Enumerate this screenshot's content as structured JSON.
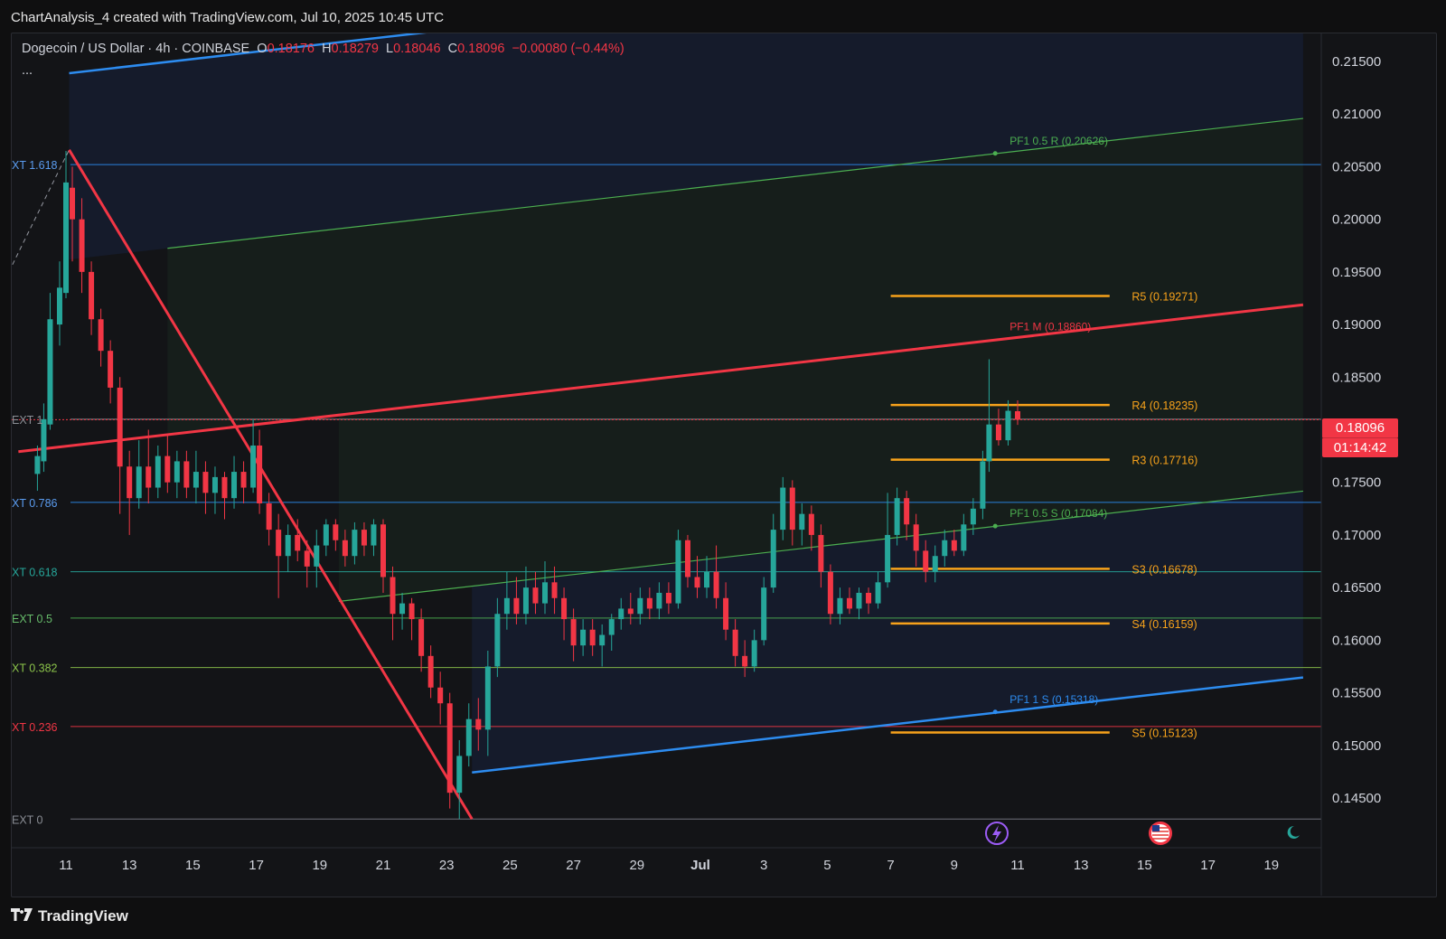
{
  "header": {
    "caption": "ChartAnalysis_4 created with TradingView.com, Jul 10, 2025 10:45 UTC"
  },
  "legend": {
    "symbol": "Dogecoin / US Dollar · 4h · COINBASE",
    "o_label": "O",
    "o_value": "0.18176",
    "h_label": "H",
    "h_value": "0.18279",
    "l_label": "L",
    "l_value": "0.18046",
    "c_label": "C",
    "c_value": "0.18096",
    "change": "−0.00080 (−0.44%)",
    "more": "..."
  },
  "last_price": {
    "value": "0.18096",
    "countdown": "01:14:42"
  },
  "footer": {
    "brand": "TradingView"
  },
  "colors": {
    "up": "#26a69a",
    "down": "#f23645",
    "channel_blue": "#2d8cf0",
    "median_red": "#f23645",
    "pivot_orange": "#f7a21b",
    "green_line": "#4caf50"
  },
  "chart_data": {
    "type": "candlestick",
    "symbol": "Dogecoin / US Dollar",
    "interval": "4h",
    "ylim": [
      0.1428,
      0.2178
    ],
    "y_ticks": [
      "0.21500",
      "0.21000",
      "0.20500",
      "0.20000",
      "0.19500",
      "0.19000",
      "0.18500",
      "0.18000",
      "0.17500",
      "0.17000",
      "0.16500",
      "0.16000",
      "0.15500",
      "0.15000",
      "0.14500"
    ],
    "x_ticks": [
      {
        "label": "11",
        "day": 0
      },
      {
        "label": "13",
        "day": 2
      },
      {
        "label": "15",
        "day": 4
      },
      {
        "label": "17",
        "day": 6
      },
      {
        "label": "19",
        "day": 8
      },
      {
        "label": "21",
        "day": 10
      },
      {
        "label": "23",
        "day": 12
      },
      {
        "label": "25",
        "day": 14
      },
      {
        "label": "27",
        "day": 16
      },
      {
        "label": "29",
        "day": 18
      },
      {
        "label": "Jul",
        "day": 20
      },
      {
        "label": "3",
        "day": 22
      },
      {
        "label": "5",
        "day": 24
      },
      {
        "label": "7",
        "day": 26
      },
      {
        "label": "9",
        "day": 28
      },
      {
        "label": "11",
        "day": 30
      },
      {
        "label": "13",
        "day": 32
      },
      {
        "label": "15",
        "day": 34
      },
      {
        "label": "17",
        "day": 36
      },
      {
        "label": "19",
        "day": 38
      }
    ],
    "fib_extension": [
      {
        "label": "XT 1.618",
        "price": 0.2052
      },
      {
        "label": "EXT 1",
        "price": 0.181
      },
      {
        "label": "XT 0.786",
        "price": 0.1731
      },
      {
        "label": "XT 0.618",
        "price": 0.1665
      },
      {
        "label": "EXT 0.5",
        "price": 0.1621
      },
      {
        "label": "XT 0.382",
        "price": 0.1574
      },
      {
        "label": "XT 0.236",
        "price": 0.1518
      },
      {
        "label": "EXT 0",
        "price": 0.143
      }
    ],
    "pivots": [
      {
        "label": "R5 (0.19271)",
        "price": 0.19271
      },
      {
        "label": "R4 (0.18235)",
        "price": 0.18235
      },
      {
        "label": "R3 (0.17716)",
        "price": 0.17716
      },
      {
        "label": "S3 (0.16678)",
        "price": 0.16678
      },
      {
        "label": "S4 (0.16159)",
        "price": 0.16159
      },
      {
        "label": "S5 (0.15123)",
        "price": 0.15123
      }
    ],
    "pitchfork_labels": [
      {
        "label": "PF1 0.5 R (0.20626)",
        "price": 0.20626
      },
      {
        "label": "PF1 M (0.18860)",
        "price": 0.1886
      },
      {
        "label": "PF1 0.5 S (0.17084)",
        "price": 0.17084
      },
      {
        "label": "PF1 1 S (0.15318)",
        "price": 0.15318
      }
    ],
    "candles": [
      {
        "d": -0.9,
        "o": 0.1758,
        "c": 0.1775,
        "h": 0.1785,
        "l": 0.1742
      },
      {
        "d": -0.7,
        "o": 0.177,
        "c": 0.181,
        "h": 0.1825,
        "l": 0.176
      },
      {
        "d": -0.5,
        "o": 0.1805,
        "c": 0.1905,
        "h": 0.193,
        "l": 0.18
      },
      {
        "d": -0.2,
        "o": 0.19,
        "c": 0.1935,
        "h": 0.196,
        "l": 0.188
      },
      {
        "d": 0.0,
        "o": 0.193,
        "c": 0.2035,
        "h": 0.2065,
        "l": 0.1925
      },
      {
        "d": 0.2,
        "o": 0.203,
        "c": 0.2,
        "h": 0.205,
        "l": 0.196
      },
      {
        "d": 0.5,
        "o": 0.2,
        "c": 0.195,
        "h": 0.202,
        "l": 0.193
      },
      {
        "d": 0.8,
        "o": 0.195,
        "c": 0.1905,
        "h": 0.196,
        "l": 0.189
      },
      {
        "d": 1.1,
        "o": 0.1905,
        "c": 0.1875,
        "h": 0.1915,
        "l": 0.186
      },
      {
        "d": 1.4,
        "o": 0.1875,
        "c": 0.184,
        "h": 0.1885,
        "l": 0.1825
      },
      {
        "d": 1.7,
        "o": 0.184,
        "c": 0.1765,
        "h": 0.185,
        "l": 0.172
      },
      {
        "d": 2.0,
        "o": 0.1765,
        "c": 0.1735,
        "h": 0.178,
        "l": 0.17
      },
      {
        "d": 2.3,
        "o": 0.1735,
        "c": 0.1765,
        "h": 0.179,
        "l": 0.1725
      },
      {
        "d": 2.6,
        "o": 0.1765,
        "c": 0.1745,
        "h": 0.18,
        "l": 0.173
      },
      {
        "d": 2.9,
        "o": 0.1745,
        "c": 0.1775,
        "h": 0.1785,
        "l": 0.1735
      },
      {
        "d": 3.2,
        "o": 0.1775,
        "c": 0.175,
        "h": 0.1795,
        "l": 0.174
      },
      {
        "d": 3.5,
        "o": 0.175,
        "c": 0.177,
        "h": 0.178,
        "l": 0.1735
      },
      {
        "d": 3.8,
        "o": 0.177,
        "c": 0.1745,
        "h": 0.178,
        "l": 0.1735
      },
      {
        "d": 4.1,
        "o": 0.1745,
        "c": 0.176,
        "h": 0.178,
        "l": 0.173
      },
      {
        "d": 4.4,
        "o": 0.176,
        "c": 0.174,
        "h": 0.177,
        "l": 0.172
      },
      {
        "d": 4.7,
        "o": 0.174,
        "c": 0.1755,
        "h": 0.1765,
        "l": 0.172
      },
      {
        "d": 5.0,
        "o": 0.1755,
        "c": 0.1735,
        "h": 0.176,
        "l": 0.1715
      },
      {
        "d": 5.3,
        "o": 0.1735,
        "c": 0.176,
        "h": 0.1775,
        "l": 0.1725
      },
      {
        "d": 5.6,
        "o": 0.176,
        "c": 0.1745,
        "h": 0.177,
        "l": 0.173
      },
      {
        "d": 5.9,
        "o": 0.1745,
        "c": 0.1785,
        "h": 0.181,
        "l": 0.174
      },
      {
        "d": 6.1,
        "o": 0.1785,
        "c": 0.173,
        "h": 0.18,
        "l": 0.172
      },
      {
        "d": 6.4,
        "o": 0.173,
        "c": 0.1705,
        "h": 0.174,
        "l": 0.169
      },
      {
        "d": 6.7,
        "o": 0.1705,
        "c": 0.168,
        "h": 0.172,
        "l": 0.164
      },
      {
        "d": 7.0,
        "o": 0.168,
        "c": 0.17,
        "h": 0.171,
        "l": 0.1665
      },
      {
        "d": 7.3,
        "o": 0.17,
        "c": 0.1685,
        "h": 0.1715,
        "l": 0.1675
      },
      {
        "d": 7.6,
        "o": 0.1685,
        "c": 0.167,
        "h": 0.1695,
        "l": 0.165
      },
      {
        "d": 7.9,
        "o": 0.167,
        "c": 0.169,
        "h": 0.1705,
        "l": 0.165
      },
      {
        "d": 8.2,
        "o": 0.169,
        "c": 0.171,
        "h": 0.1715,
        "l": 0.168
      },
      {
        "d": 8.5,
        "o": 0.171,
        "c": 0.1695,
        "h": 0.1715,
        "l": 0.1685
      },
      {
        "d": 8.8,
        "o": 0.1695,
        "c": 0.168,
        "h": 0.1705,
        "l": 0.167
      },
      {
        "d": 9.1,
        "o": 0.168,
        "c": 0.1705,
        "h": 0.1712,
        "l": 0.1672
      },
      {
        "d": 9.4,
        "o": 0.1705,
        "c": 0.169,
        "h": 0.1712,
        "l": 0.168
      },
      {
        "d": 9.7,
        "o": 0.169,
        "c": 0.171,
        "h": 0.1715,
        "l": 0.168
      },
      {
        "d": 10.0,
        "o": 0.171,
        "c": 0.166,
        "h": 0.1715,
        "l": 0.1645
      },
      {
        "d": 10.3,
        "o": 0.166,
        "c": 0.1625,
        "h": 0.167,
        "l": 0.16
      },
      {
        "d": 10.6,
        "o": 0.1625,
        "c": 0.1635,
        "h": 0.1645,
        "l": 0.161
      },
      {
        "d": 10.9,
        "o": 0.1635,
        "c": 0.162,
        "h": 0.164,
        "l": 0.16
      },
      {
        "d": 11.2,
        "o": 0.162,
        "c": 0.1585,
        "h": 0.163,
        "l": 0.157
      },
      {
        "d": 11.5,
        "o": 0.1585,
        "c": 0.1555,
        "h": 0.1595,
        "l": 0.1545
      },
      {
        "d": 11.8,
        "o": 0.1555,
        "c": 0.154,
        "h": 0.157,
        "l": 0.152
      },
      {
        "d": 12.1,
        "o": 0.154,
        "c": 0.1455,
        "h": 0.155,
        "l": 0.144
      },
      {
        "d": 12.4,
        "o": 0.1455,
        "c": 0.149,
        "h": 0.1505,
        "l": 0.143
      },
      {
        "d": 12.7,
        "o": 0.149,
        "c": 0.1525,
        "h": 0.154,
        "l": 0.148
      },
      {
        "d": 13.0,
        "o": 0.1525,
        "c": 0.1515,
        "h": 0.1545,
        "l": 0.1495
      },
      {
        "d": 13.3,
        "o": 0.1515,
        "c": 0.1575,
        "h": 0.159,
        "l": 0.149
      },
      {
        "d": 13.6,
        "o": 0.1575,
        "c": 0.1625,
        "h": 0.164,
        "l": 0.1565
      },
      {
        "d": 13.9,
        "o": 0.1625,
        "c": 0.164,
        "h": 0.1665,
        "l": 0.161
      },
      {
        "d": 14.2,
        "o": 0.164,
        "c": 0.1625,
        "h": 0.166,
        "l": 0.1615
      },
      {
        "d": 14.5,
        "o": 0.1625,
        "c": 0.165,
        "h": 0.167,
        "l": 0.1615
      },
      {
        "d": 14.8,
        "o": 0.165,
        "c": 0.1635,
        "h": 0.1665,
        "l": 0.1625
      },
      {
        "d": 15.1,
        "o": 0.1635,
        "c": 0.1655,
        "h": 0.1675,
        "l": 0.1625
      },
      {
        "d": 15.4,
        "o": 0.1655,
        "c": 0.164,
        "h": 0.167,
        "l": 0.1625
      },
      {
        "d": 15.7,
        "o": 0.164,
        "c": 0.162,
        "h": 0.165,
        "l": 0.16
      },
      {
        "d": 16.0,
        "o": 0.162,
        "c": 0.1595,
        "h": 0.163,
        "l": 0.158
      },
      {
        "d": 16.3,
        "o": 0.1595,
        "c": 0.161,
        "h": 0.162,
        "l": 0.1585
      },
      {
        "d": 16.6,
        "o": 0.161,
        "c": 0.1595,
        "h": 0.162,
        "l": 0.1585
      },
      {
        "d": 16.9,
        "o": 0.1595,
        "c": 0.1605,
        "h": 0.1615,
        "l": 0.1575
      },
      {
        "d": 17.2,
        "o": 0.1605,
        "c": 0.162,
        "h": 0.1625,
        "l": 0.159
      },
      {
        "d": 17.5,
        "o": 0.162,
        "c": 0.163,
        "h": 0.164,
        "l": 0.161
      },
      {
        "d": 17.8,
        "o": 0.163,
        "c": 0.1625,
        "h": 0.1645,
        "l": 0.1615
      },
      {
        "d": 18.1,
        "o": 0.1625,
        "c": 0.164,
        "h": 0.165,
        "l": 0.1615
      },
      {
        "d": 18.4,
        "o": 0.164,
        "c": 0.163,
        "h": 0.165,
        "l": 0.162
      },
      {
        "d": 18.7,
        "o": 0.163,
        "c": 0.1645,
        "h": 0.1655,
        "l": 0.162
      },
      {
        "d": 19.0,
        "o": 0.1645,
        "c": 0.1635,
        "h": 0.1655,
        "l": 0.1625
      },
      {
        "d": 19.3,
        "o": 0.1635,
        "c": 0.1695,
        "h": 0.1705,
        "l": 0.163
      },
      {
        "d": 19.6,
        "o": 0.1695,
        "c": 0.166,
        "h": 0.17,
        "l": 0.165
      },
      {
        "d": 19.9,
        "o": 0.166,
        "c": 0.165,
        "h": 0.168,
        "l": 0.164
      },
      {
        "d": 20.2,
        "o": 0.165,
        "c": 0.1665,
        "h": 0.168,
        "l": 0.164
      },
      {
        "d": 20.5,
        "o": 0.1665,
        "c": 0.164,
        "h": 0.169,
        "l": 0.163
      },
      {
        "d": 20.8,
        "o": 0.164,
        "c": 0.161,
        "h": 0.1655,
        "l": 0.16
      },
      {
        "d": 21.1,
        "o": 0.161,
        "c": 0.1585,
        "h": 0.162,
        "l": 0.1575
      },
      {
        "d": 21.4,
        "o": 0.1585,
        "c": 0.1575,
        "h": 0.16,
        "l": 0.1565
      },
      {
        "d": 21.7,
        "o": 0.1575,
        "c": 0.16,
        "h": 0.161,
        "l": 0.157
      },
      {
        "d": 22.0,
        "o": 0.16,
        "c": 0.165,
        "h": 0.166,
        "l": 0.1595
      },
      {
        "d": 22.3,
        "o": 0.165,
        "c": 0.1705,
        "h": 0.172,
        "l": 0.1645
      },
      {
        "d": 22.6,
        "o": 0.1705,
        "c": 0.1745,
        "h": 0.1755,
        "l": 0.1695
      },
      {
        "d": 22.9,
        "o": 0.1745,
        "c": 0.1705,
        "h": 0.1752,
        "l": 0.169
      },
      {
        "d": 23.2,
        "o": 0.1705,
        "c": 0.172,
        "h": 0.173,
        "l": 0.169
      },
      {
        "d": 23.5,
        "o": 0.172,
        "c": 0.17,
        "h": 0.1728,
        "l": 0.1685
      },
      {
        "d": 23.8,
        "o": 0.17,
        "c": 0.1665,
        "h": 0.171,
        "l": 0.165
      },
      {
        "d": 24.1,
        "o": 0.1665,
        "c": 0.1625,
        "h": 0.1672,
        "l": 0.1615
      },
      {
        "d": 24.4,
        "o": 0.1625,
        "c": 0.164,
        "h": 0.165,
        "l": 0.1615
      },
      {
        "d": 24.7,
        "o": 0.164,
        "c": 0.163,
        "h": 0.165,
        "l": 0.1625
      },
      {
        "d": 25.0,
        "o": 0.163,
        "c": 0.1645,
        "h": 0.165,
        "l": 0.162
      },
      {
        "d": 25.3,
        "o": 0.1645,
        "c": 0.1635,
        "h": 0.165,
        "l": 0.1625
      },
      {
        "d": 25.6,
        "o": 0.1635,
        "c": 0.1655,
        "h": 0.1665,
        "l": 0.163
      },
      {
        "d": 25.9,
        "o": 0.1655,
        "c": 0.17,
        "h": 0.174,
        "l": 0.165
      },
      {
        "d": 26.2,
        "o": 0.17,
        "c": 0.1735,
        "h": 0.1745,
        "l": 0.169
      },
      {
        "d": 26.5,
        "o": 0.1735,
        "c": 0.171,
        "h": 0.1742,
        "l": 0.1695
      },
      {
        "d": 26.8,
        "o": 0.171,
        "c": 0.1685,
        "h": 0.172,
        "l": 0.167
      },
      {
        "d": 27.1,
        "o": 0.1685,
        "c": 0.1665,
        "h": 0.1695,
        "l": 0.1655
      },
      {
        "d": 27.4,
        "o": 0.1665,
        "c": 0.168,
        "h": 0.169,
        "l": 0.1655
      },
      {
        "d": 27.7,
        "o": 0.168,
        "c": 0.1695,
        "h": 0.1705,
        "l": 0.167
      },
      {
        "d": 28.0,
        "o": 0.1695,
        "c": 0.1685,
        "h": 0.1705,
        "l": 0.168
      },
      {
        "d": 28.3,
        "o": 0.1685,
        "c": 0.171,
        "h": 0.172,
        "l": 0.168
      },
      {
        "d": 28.6,
        "o": 0.171,
        "c": 0.1725,
        "h": 0.1735,
        "l": 0.17
      },
      {
        "d": 28.9,
        "o": 0.1725,
        "c": 0.177,
        "h": 0.178,
        "l": 0.1715
      },
      {
        "d": 29.1,
        "o": 0.177,
        "c": 0.1805,
        "h": 0.1867,
        "l": 0.176
      },
      {
        "d": 29.4,
        "o": 0.1805,
        "c": 0.179,
        "h": 0.182,
        "l": 0.1785
      },
      {
        "d": 29.7,
        "o": 0.179,
        "c": 0.1818,
        "h": 0.1828,
        "l": 0.1785
      },
      {
        "d": 30.0,
        "o": 0.18176,
        "c": 0.18096,
        "h": 0.18279,
        "l": 0.18046
      }
    ]
  }
}
